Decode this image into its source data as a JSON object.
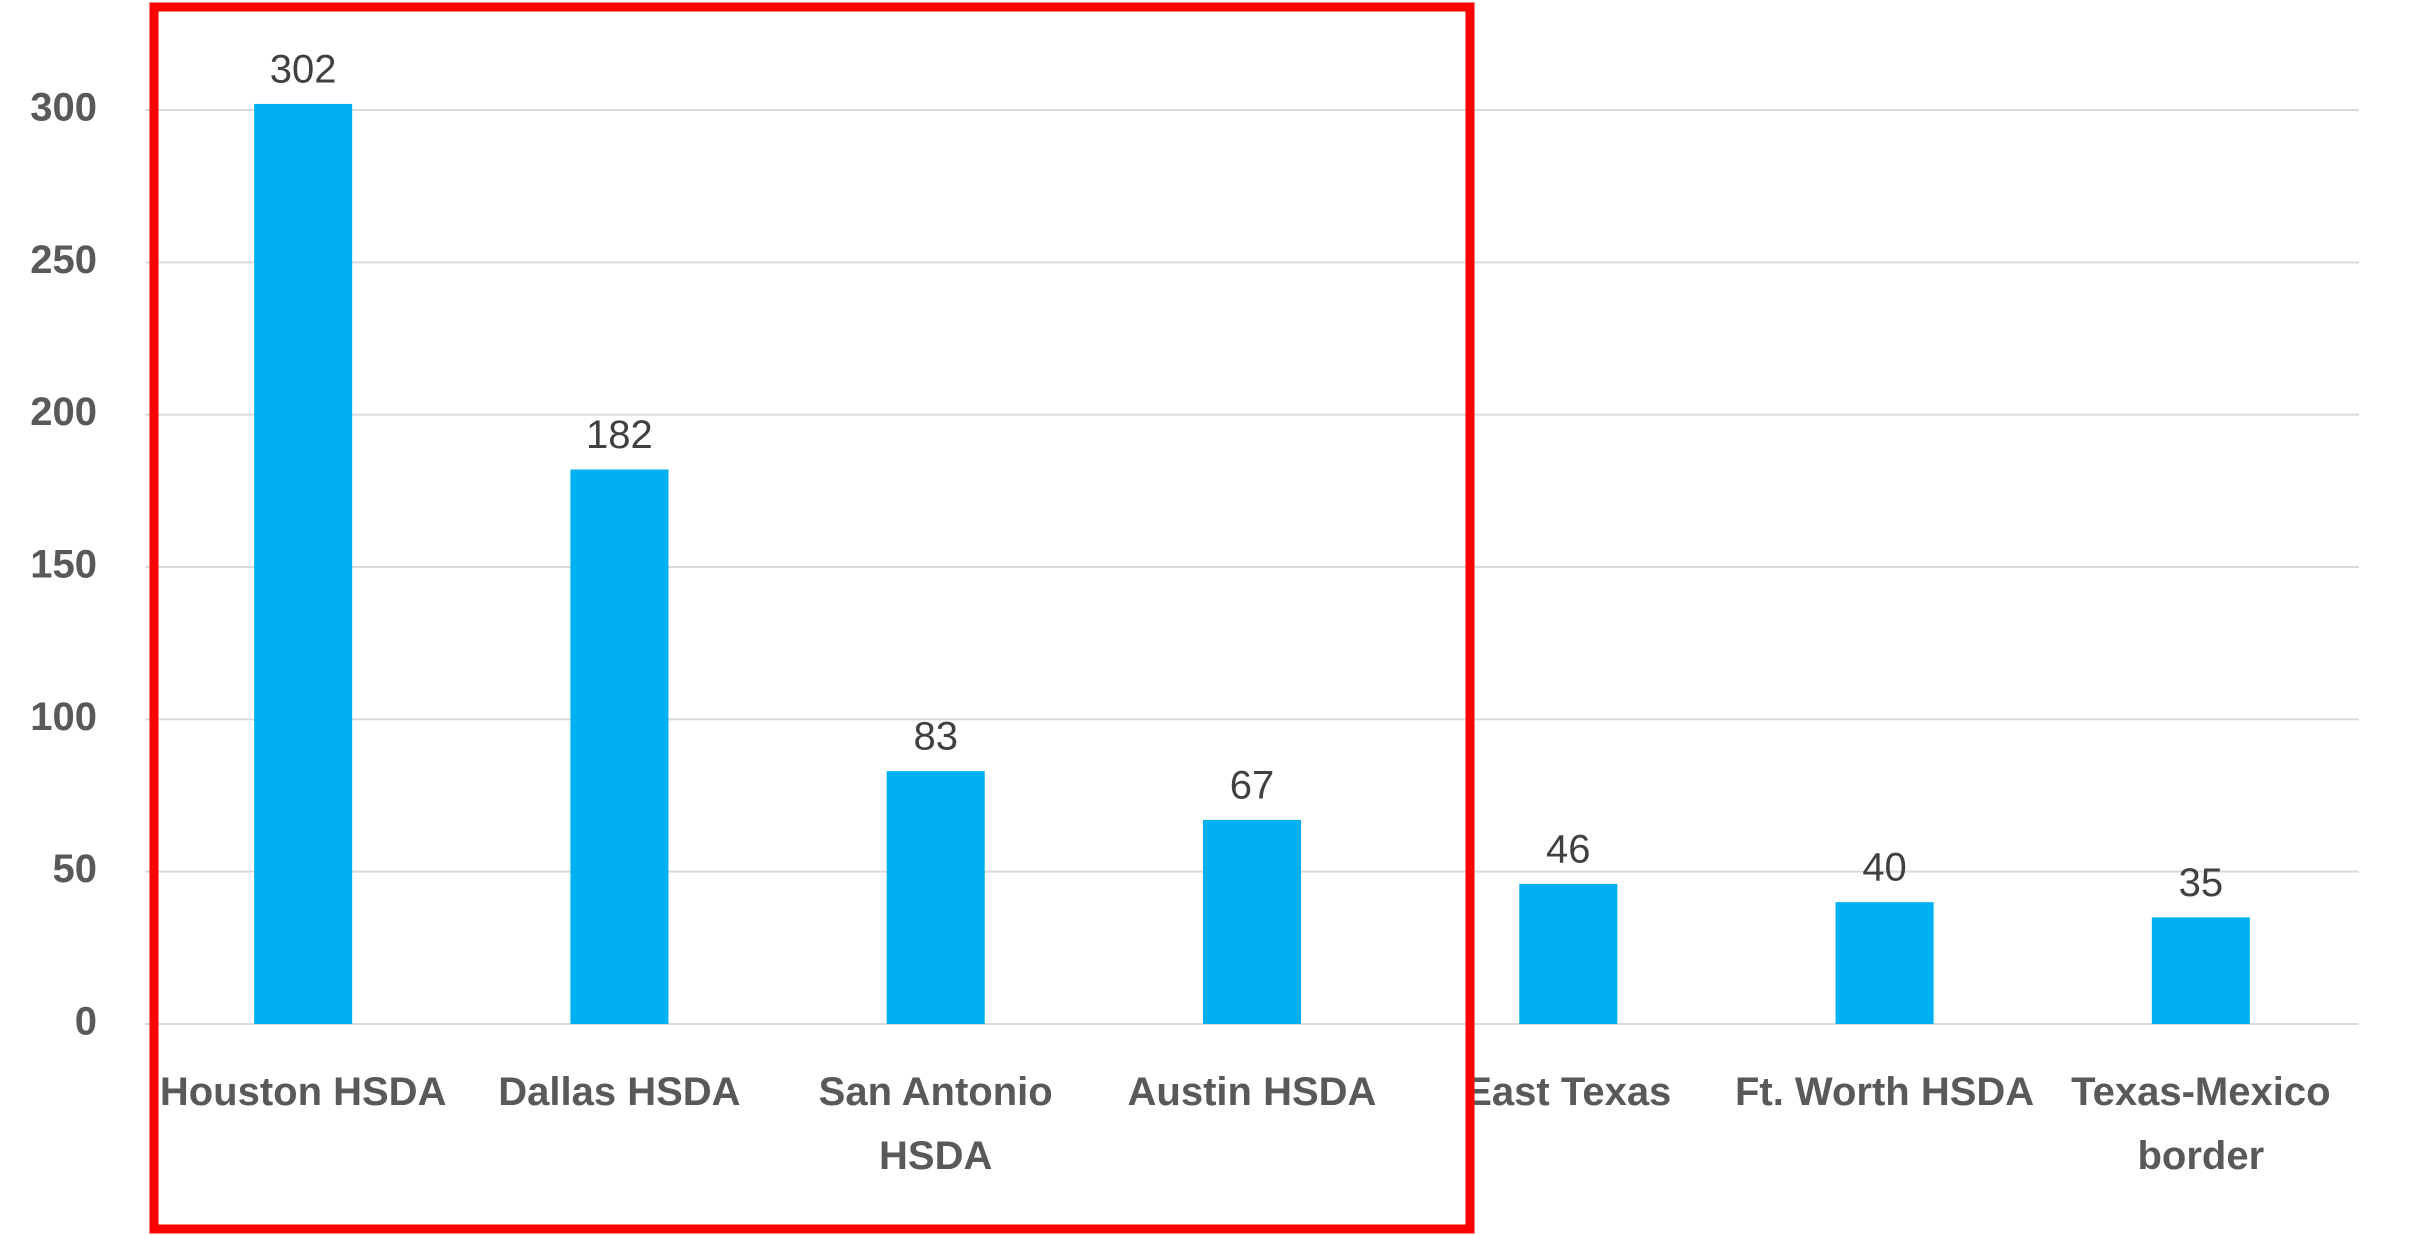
{
  "chart_data": {
    "type": "bar",
    "categories": [
      "Houston HSDA",
      "Dallas HSDA",
      "San Antonio HSDA",
      "Austin HSDA",
      "East Texas",
      "Ft. Worth HSDA",
      "Texas-Mexico border"
    ],
    "values": [
      302,
      182,
      83,
      67,
      46,
      40,
      35
    ],
    "color": "#00b0f0",
    "ylim": [
      0,
      300
    ],
    "yticks": [
      0,
      50,
      100,
      150,
      200,
      250,
      300
    ],
    "grid": true
  }
}
